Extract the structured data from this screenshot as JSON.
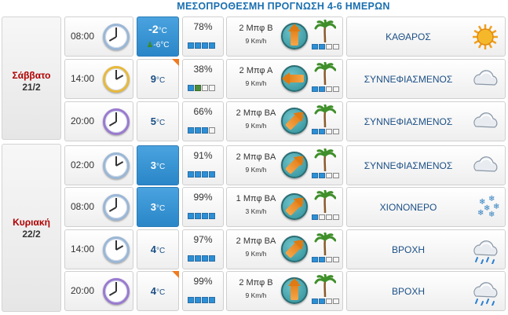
{
  "title": "ΜΕΣΟΠΡΟΘΕΣΜΗ ΠΡΟΓΝΩΣΗ 4-6 ΗΜΕΡΩΝ",
  "colors": {
    "accent": "#1a6fb0",
    "day": "#b00000",
    "temp_highlight": "#3a94d4",
    "flag": "#f07a20"
  },
  "days": [
    {
      "name": "Σάββατο",
      "date": "21/2"
    },
    {
      "name": "Κυριακή",
      "date": "22/2"
    }
  ],
  "rows": [
    {
      "time": "08:00",
      "clock_icon": "clock-blue-icon",
      "temp": "-2",
      "unit": "°C",
      "feels": "-6",
      "feels_unit": "°C",
      "highlight": true,
      "flag": false,
      "humidity": "78%",
      "humidity_level": 4,
      "wind": "2 Μπφ Β",
      "wind_speed": "9 Km/h",
      "wind_icon": "compass-north-icon",
      "beaufort_level": 2,
      "sky": "ΚΑΘΑΡΟΣ",
      "sky_icon": "sun-icon"
    },
    {
      "time": "14:00",
      "clock_icon": "clock-gold-icon",
      "temp": "9",
      "unit": "°C",
      "highlight": false,
      "flag": true,
      "humidity": "38%",
      "humidity_level": 2,
      "wind": "2 Μπφ Α",
      "wind_speed": "9 Km/h",
      "wind_icon": "compass-east-icon",
      "beaufort_level": 2,
      "sky": "ΣΥΝΝΕΦΙΑΣΜΕΝΟΣ",
      "sky_icon": "cloud-icon"
    },
    {
      "time": "20:00",
      "clock_icon": "clock-purple-icon",
      "temp": "5",
      "unit": "°C",
      "highlight": false,
      "flag": false,
      "humidity": "66%",
      "humidity_level": 3,
      "wind": "2 Μπφ ΒΑ",
      "wind_speed": "9 Km/h",
      "wind_icon": "compass-northeast-icon",
      "beaufort_level": 2,
      "sky": "ΣΥΝΝΕΦΙΑΣΜΕΝΟΣ",
      "sky_icon": "cloud-icon"
    },
    {
      "time": "02:00",
      "clock_icon": "clock-blue-icon",
      "temp": "3",
      "unit": "°C",
      "highlight": true,
      "flag": false,
      "humidity": "91%",
      "humidity_level": 4,
      "wind": "2 Μπφ ΒΑ",
      "wind_speed": "9 Km/h",
      "wind_icon": "compass-northeast-icon",
      "beaufort_level": 2,
      "sky": "ΣΥΝΝΕΦΙΑΣΜΕΝΟΣ",
      "sky_icon": "cloud-icon"
    },
    {
      "time": "08:00",
      "clock_icon": "clock-blue-icon",
      "temp": "3",
      "unit": "°C",
      "highlight": true,
      "flag": false,
      "humidity": "99%",
      "humidity_level": 4,
      "wind": "1 Μπφ ΒΑ",
      "wind_speed": "3 Km/h",
      "wind_icon": "compass-northeast-icon",
      "beaufort_level": 1,
      "sky": "ΧΙΟΝΟΝΕΡΟ",
      "sky_icon": "sleet-icon"
    },
    {
      "time": "14:00",
      "clock_icon": "clock-blue-icon",
      "temp": "4",
      "unit": "°C",
      "highlight": false,
      "flag": false,
      "humidity": "97%",
      "humidity_level": 4,
      "wind": "2 Μπφ ΒΑ",
      "wind_speed": "9 Km/h",
      "wind_icon": "compass-northeast-icon",
      "beaufort_level": 2,
      "sky": "ΒΡΟΧΗ",
      "sky_icon": "rain-icon"
    },
    {
      "time": "20:00",
      "clock_icon": "clock-purple-icon",
      "temp": "4",
      "unit": "°C",
      "highlight": false,
      "flag": true,
      "humidity": "99%",
      "humidity_level": 4,
      "wind": "2 Μπφ Β",
      "wind_speed": "9 Km/h",
      "wind_icon": "compass-north-icon",
      "beaufort_level": 2,
      "sky": "ΒΡΟΧΗ",
      "sky_icon": "rain-icon"
    }
  ]
}
